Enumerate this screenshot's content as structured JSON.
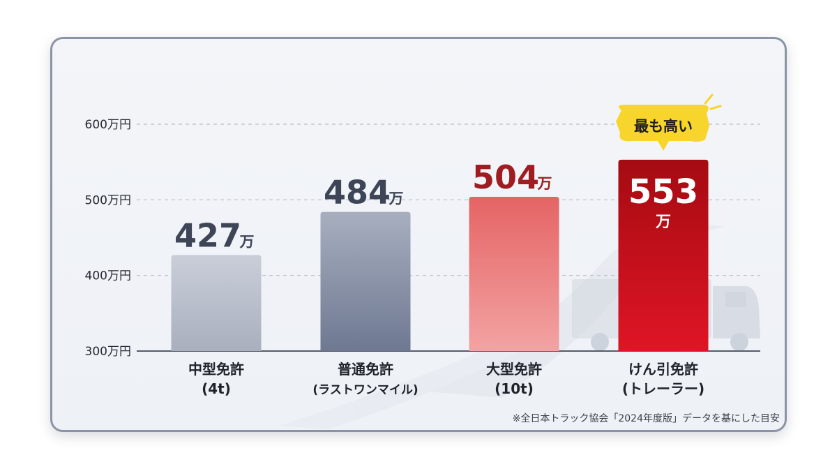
{
  "chart_data": {
    "type": "bar",
    "categories": [
      [
        "中型免許",
        "(4t)"
      ],
      [
        "普通免許",
        "(ラストワンマイル)"
      ],
      [
        "大型免許",
        "(10t)"
      ],
      [
        "けん引免許",
        "(トレーラー)"
      ]
    ],
    "values": [
      427,
      484,
      504,
      553
    ],
    "value_unit": "万",
    "y_ticks": [
      "600万円",
      "500万円",
      "400万円",
      "300万円"
    ],
    "y_tick_values": [
      600,
      500,
      400,
      300
    ],
    "ylim": [
      300,
      600
    ],
    "grid": true,
    "highlight_badge": "最も高い",
    "highlight_index": 3,
    "colors": {
      "bar_gray_light_top": "#c9ced9",
      "bar_gray_light_bottom": "#a9afbd",
      "bar_gray_dark_top": "#a7afbf",
      "bar_gray_dark_bottom": "#6e7891",
      "bar_red_light_top": "#e56464",
      "bar_red_light_bottom": "#f3a3a3",
      "bar_red_dark_top": "#a50b12",
      "bar_red_dark_bottom": "#df1525",
      "label_gray": "#3d4556",
      "label_red": "#9f1c20",
      "badge": "#f7d52c"
    }
  },
  "footnote": "※全日本トラック協会「2024年度版」データを基にした目安"
}
